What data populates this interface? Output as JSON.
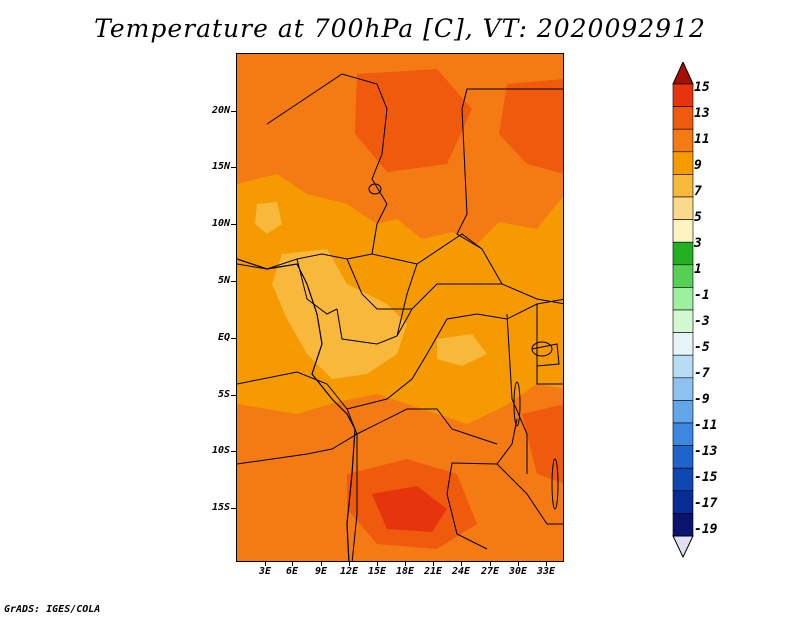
{
  "title": "Temperature at 700hPa [C], VT: 2020092912",
  "credit": "GrADS: IGES/COLA",
  "lat_labels": [
    "20N",
    "15N",
    "10N",
    "5N",
    "EQ",
    "5S",
    "10S",
    "15S"
  ],
  "lon_labels": [
    "3E",
    "6E",
    "9E",
    "12E",
    "15E",
    "18E",
    "21E",
    "24E",
    "27E",
    "30E",
    "33E"
  ],
  "colorbar": {
    "labels": [
      "15",
      "13",
      "11",
      "9",
      "7",
      "5",
      "3",
      "1",
      "-1",
      "-3",
      "-5",
      "-7",
      "-9",
      "-11",
      "-13",
      "-15",
      "-17",
      "-19"
    ],
    "colors": [
      "#a50f06",
      "#e6340c",
      "#f05a0c",
      "#f47a14",
      "#f59a00",
      "#f8b83c",
      "#fad98a",
      "#fdf3c0",
      "#22b022",
      "#55d055",
      "#9ef09e",
      "#d2f8d2",
      "#e6f4fa",
      "#b7dcf4",
      "#8cc2f0",
      "#62a6ea",
      "#3c88e0",
      "#1e64cc",
      "#0e46b4",
      "#082c96",
      "#0a146e",
      "#e0e0f4"
    ]
  },
  "map": {
    "field_colors": {
      "t13": "#f05a0c",
      "t11": "#f47a14",
      "t9": "#f59a00",
      "t7": "#f8b83c",
      "t15": "#e6340c"
    }
  }
}
